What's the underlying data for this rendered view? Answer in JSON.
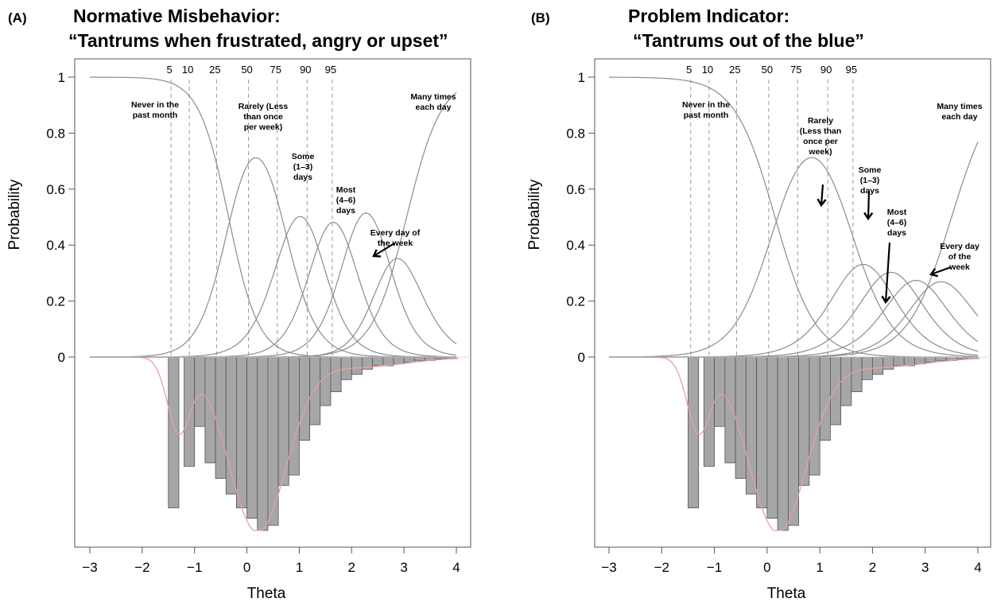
{
  "chart_data": [
    {
      "panel": "(A)",
      "type": "line",
      "title_line1": "Normative Misbehavior:",
      "title_line2": "“Tantrums when frustrated, angry or upset”",
      "xlabel": "Theta",
      "ylabel": "Probability",
      "xlim": [
        -3,
        4
      ],
      "ylim": [
        0,
        1
      ],
      "x_ticks": [
        "−3",
        "−2",
        "−1",
        "0",
        "1",
        "2",
        "3",
        "4"
      ],
      "y_ticks": [
        "0",
        "0.2",
        "0.4",
        "0.6",
        "0.8",
        "1"
      ],
      "percentile_labels": [
        "5",
        "10",
        "25",
        "50",
        "75",
        "90",
        "95"
      ],
      "percentile_theta": [
        -1.45,
        -1.1,
        -0.58,
        0.03,
        0.58,
        1.15,
        1.63
      ],
      "thresholds": [
        -0.35,
        0.7,
        1.35,
        1.95,
        2.6,
        3.05
      ],
      "discriminations": [
        3.5,
        3.3,
        3.5,
        3.5,
        3.5,
        3.0
      ],
      "curve_labels": [
        {
          "text": [
            "Never in the",
            "past month"
          ]
        },
        {
          "text": [
            "Rarely (Less",
            "than once",
            "per week)"
          ]
        },
        {
          "text": [
            "Some",
            "(1–3)",
            "days"
          ]
        },
        {
          "text": [
            "Most",
            "(4–6)",
            "days"
          ]
        },
        {
          "text": [
            "Every day of",
            "the week"
          ]
        },
        {
          "text": [
            "Many times",
            "each day"
          ]
        }
      ],
      "histogram": {
        "bins_start_theta": [
          -1.5,
          -1.2,
          -1.0,
          -0.8,
          -0.6,
          -0.4,
          -0.2,
          0.0,
          0.2,
          0.4,
          0.6,
          0.8,
          1.0,
          1.2,
          1.4,
          1.6,
          1.8,
          2.0,
          2.2,
          2.4,
          2.6,
          2.8,
          3.0,
          3.2,
          3.4,
          3.6,
          3.8
        ],
        "bin_width": 0.2,
        "relative_heights": [
          0.87,
          0.63,
          0.4,
          0.61,
          0.7,
          0.79,
          0.87,
          0.93,
          1.0,
          0.97,
          0.74,
          0.68,
          0.48,
          0.39,
          0.28,
          0.2,
          0.13,
          0.1,
          0.07,
          0.05,
          0.05,
          0.04,
          0.03,
          0.02,
          0.02,
          0.01,
          0.01
        ]
      }
    },
    {
      "panel": "(B)",
      "type": "line",
      "title_line1": "Problem Indicator:",
      "title_line2": "“Tantrums out of the blue”",
      "xlabel": "Theta",
      "ylabel": "Probability",
      "xlim": [
        -3,
        4
      ],
      "ylim": [
        0,
        1
      ],
      "x_ticks": [
        "−3",
        "−2",
        "−1",
        "0",
        "1",
        "2",
        "3",
        "4"
      ],
      "y_ticks": [
        "0",
        "0.2",
        "0.4",
        "0.6",
        "0.8",
        "1"
      ],
      "percentile_labels": [
        "5",
        "10",
        "25",
        "50",
        "75",
        "90",
        "95"
      ],
      "percentile_theta": [
        -1.45,
        -1.1,
        -0.58,
        0.03,
        0.58,
        1.15,
        1.63
      ],
      "thresholds": [
        0.15,
        1.55,
        2.1,
        2.6,
        3.05,
        3.5
      ],
      "discriminations": [
        2.6,
        2.5,
        2.5,
        2.5,
        2.5,
        2.4
      ],
      "curve_labels": [
        {
          "text": [
            "Never in the",
            "past month"
          ]
        },
        {
          "text": [
            "Rarely",
            "(Less than",
            "once per",
            "week)"
          ]
        },
        {
          "text": [
            "Some",
            "(1–3)",
            "days"
          ]
        },
        {
          "text": [
            "Most",
            "(4–6)",
            "days"
          ]
        },
        {
          "text": [
            "Every day",
            "of the",
            "week"
          ]
        },
        {
          "text": [
            "Many times",
            "each day"
          ]
        }
      ],
      "histogram": {
        "bins_start_theta": [
          -1.5,
          -1.2,
          -1.0,
          -0.8,
          -0.6,
          -0.4,
          -0.2,
          0.0,
          0.2,
          0.4,
          0.6,
          0.8,
          1.0,
          1.2,
          1.4,
          1.6,
          1.8,
          2.0,
          2.2,
          2.4,
          2.6,
          2.8,
          3.0,
          3.2,
          3.4,
          3.6,
          3.8
        ],
        "bin_width": 0.2,
        "relative_heights": [
          0.87,
          0.63,
          0.4,
          0.61,
          0.7,
          0.79,
          0.87,
          0.93,
          1.0,
          0.97,
          0.74,
          0.68,
          0.48,
          0.39,
          0.28,
          0.2,
          0.13,
          0.1,
          0.07,
          0.05,
          0.05,
          0.04,
          0.03,
          0.02,
          0.02,
          0.01,
          0.01
        ]
      }
    }
  ],
  "colors": {
    "curve": "#8c8c8c",
    "bar_fill": "#a6a6a6",
    "bar_stroke": "#555555",
    "density": "#e8a0a0",
    "dashed": "#999999",
    "axis": "#555555"
  }
}
